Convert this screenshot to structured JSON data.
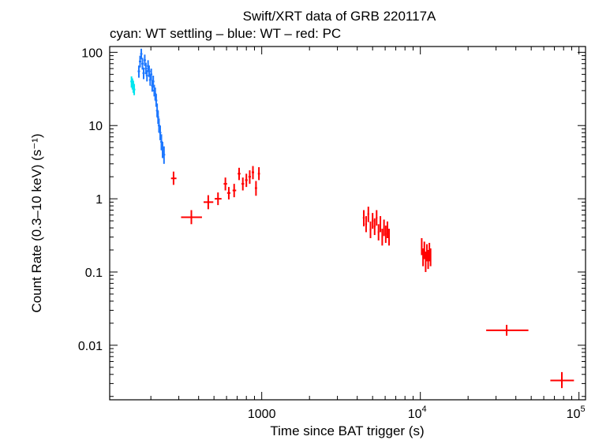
{
  "chart_data": {
    "type": "scatter",
    "title": "Swift/XRT data of GRB 220117A",
    "subtitle": "cyan: WT settling – blue: WT – red: PC",
    "xlabel": "Time since BAT trigger (s)",
    "ylabel": "Count Rate (0.3–10 keV) (s⁻¹)",
    "x_scale": "log",
    "y_scale": "log",
    "xlim": [
      110,
      110000
    ],
    "ylim": [
      0.0018,
      120
    ],
    "x_ticks": [
      {
        "value": 1000,
        "label": "1000",
        "kind": "plain"
      },
      {
        "value": 10000,
        "label": "10",
        "exp": "4",
        "kind": "power"
      },
      {
        "value": 100000,
        "label": "10",
        "exp": "5",
        "kind": "power"
      }
    ],
    "y_ticks": [
      {
        "value": 100,
        "label": "100"
      },
      {
        "value": 10,
        "label": "10"
      },
      {
        "value": 1,
        "label": "1"
      },
      {
        "value": 0.1,
        "label": "0.1"
      },
      {
        "value": 0.01,
        "label": "0.01"
      }
    ],
    "grid": false,
    "series": [
      {
        "name": "WT settling",
        "color": "#00e5ee",
        "points": [
          {
            "x": 151,
            "y": 40,
            "ylo": 33,
            "yhi": 47
          },
          {
            "x": 153,
            "y": 37,
            "ylo": 31,
            "yhi": 44
          },
          {
            "x": 155,
            "y": 34,
            "ylo": 28,
            "yhi": 41
          },
          {
            "x": 157,
            "y": 31,
            "ylo": 26,
            "yhi": 37
          }
        ]
      },
      {
        "name": "WT",
        "color": "#1e78ff",
        "points": [
          {
            "x": 168,
            "y": 55,
            "ylo": 45,
            "yhi": 66
          },
          {
            "x": 171,
            "y": 75,
            "ylo": 62,
            "yhi": 90
          },
          {
            "x": 174,
            "y": 95,
            "ylo": 80,
            "yhi": 112
          },
          {
            "x": 177,
            "y": 70,
            "ylo": 58,
            "yhi": 84
          },
          {
            "x": 180,
            "y": 52,
            "ylo": 43,
            "yhi": 62
          },
          {
            "x": 183,
            "y": 78,
            "ylo": 65,
            "yhi": 93
          },
          {
            "x": 186,
            "y": 60,
            "ylo": 50,
            "yhi": 72
          },
          {
            "x": 189,
            "y": 48,
            "ylo": 40,
            "yhi": 57
          },
          {
            "x": 192,
            "y": 65,
            "ylo": 54,
            "yhi": 78
          },
          {
            "x": 195,
            "y": 55,
            "ylo": 46,
            "yhi": 66
          },
          {
            "x": 198,
            "y": 42,
            "ylo": 35,
            "yhi": 50
          },
          {
            "x": 201,
            "y": 50,
            "ylo": 42,
            "yhi": 60
          },
          {
            "x": 204,
            "y": 35,
            "ylo": 29,
            "yhi": 42
          },
          {
            "x": 207,
            "y": 40,
            "ylo": 33,
            "yhi": 48
          },
          {
            "x": 210,
            "y": 30,
            "ylo": 25,
            "yhi": 36
          },
          {
            "x": 213,
            "y": 27,
            "ylo": 22,
            "yhi": 33
          },
          {
            "x": 216,
            "y": 22,
            "ylo": 18,
            "yhi": 27
          },
          {
            "x": 219,
            "y": 16,
            "ylo": 13,
            "yhi": 20
          },
          {
            "x": 222,
            "y": 13,
            "ylo": 10.5,
            "yhi": 16
          },
          {
            "x": 225,
            "y": 10,
            "ylo": 8,
            "yhi": 12.5
          },
          {
            "x": 229,
            "y": 8,
            "ylo": 6.3,
            "yhi": 10
          },
          {
            "x": 233,
            "y": 6,
            "ylo": 4.6,
            "yhi": 7.6
          },
          {
            "x": 237,
            "y": 4.7,
            "ylo": 3.6,
            "yhi": 6
          },
          {
            "x": 242,
            "y": 4,
            "ylo": 3,
            "yhi": 5.2
          }
        ]
      },
      {
        "name": "PC",
        "color": "#ff0000",
        "points": [
          {
            "x": 278,
            "y": 1.9,
            "xlo": 268,
            "xhi": 290,
            "ylo": 1.55,
            "yhi": 2.35
          },
          {
            "x": 360,
            "y": 0.56,
            "xlo": 310,
            "xhi": 420,
            "ylo": 0.45,
            "yhi": 0.7
          },
          {
            "x": 460,
            "y": 0.9,
            "xlo": 430,
            "xhi": 495,
            "ylo": 0.72,
            "yhi": 1.12
          },
          {
            "x": 530,
            "y": 1.0,
            "xlo": 505,
            "xhi": 558,
            "ylo": 0.82,
            "yhi": 1.22
          },
          {
            "x": 590,
            "y": 1.6,
            "xlo": 575,
            "xhi": 605,
            "ylo": 1.3,
            "yhi": 1.95
          },
          {
            "x": 620,
            "y": 1.2,
            "xlo": 605,
            "xhi": 635,
            "ylo": 0.98,
            "yhi": 1.45
          },
          {
            "x": 670,
            "y": 1.3,
            "xlo": 655,
            "xhi": 690,
            "ylo": 1.05,
            "yhi": 1.6
          },
          {
            "x": 720,
            "y": 2.2,
            "xlo": 705,
            "xhi": 735,
            "ylo": 1.8,
            "yhi": 2.65
          },
          {
            "x": 760,
            "y": 1.6,
            "xlo": 745,
            "xhi": 775,
            "ylo": 1.3,
            "yhi": 1.95
          },
          {
            "x": 800,
            "y": 1.8,
            "xlo": 785,
            "xhi": 815,
            "ylo": 1.45,
            "yhi": 2.2
          },
          {
            "x": 840,
            "y": 2.0,
            "xlo": 825,
            "xhi": 855,
            "ylo": 1.6,
            "yhi": 2.45
          },
          {
            "x": 880,
            "y": 2.3,
            "xlo": 865,
            "xhi": 895,
            "ylo": 1.85,
            "yhi": 2.8
          },
          {
            "x": 920,
            "y": 1.4,
            "xlo": 905,
            "xhi": 935,
            "ylo": 1.1,
            "yhi": 1.75
          },
          {
            "x": 960,
            "y": 2.2,
            "xlo": 945,
            "xhi": 975,
            "ylo": 1.8,
            "yhi": 2.7
          },
          {
            "x": 4400,
            "y": 0.55,
            "xlo": 4340,
            "xhi": 4460,
            "ylo": 0.42,
            "yhi": 0.7
          },
          {
            "x": 4550,
            "y": 0.45,
            "xlo": 4490,
            "xhi": 4610,
            "ylo": 0.35,
            "yhi": 0.58
          },
          {
            "x": 4700,
            "y": 0.62,
            "xlo": 4640,
            "xhi": 4760,
            "ylo": 0.48,
            "yhi": 0.78
          },
          {
            "x": 4850,
            "y": 0.38,
            "xlo": 4790,
            "xhi": 4910,
            "ylo": 0.29,
            "yhi": 0.49
          },
          {
            "x": 5000,
            "y": 0.5,
            "xlo": 4940,
            "xhi": 5060,
            "ylo": 0.39,
            "yhi": 0.64
          },
          {
            "x": 5150,
            "y": 0.42,
            "xlo": 5090,
            "xhi": 5210,
            "ylo": 0.32,
            "yhi": 0.54
          },
          {
            "x": 5300,
            "y": 0.55,
            "xlo": 5240,
            "xhi": 5360,
            "ylo": 0.43,
            "yhi": 0.7
          },
          {
            "x": 5450,
            "y": 0.35,
            "xlo": 5390,
            "xhi": 5510,
            "ylo": 0.27,
            "yhi": 0.45
          },
          {
            "x": 5600,
            "y": 0.45,
            "xlo": 5540,
            "xhi": 5660,
            "ylo": 0.35,
            "yhi": 0.58
          },
          {
            "x": 5750,
            "y": 0.3,
            "xlo": 5690,
            "xhi": 5810,
            "ylo": 0.23,
            "yhi": 0.39
          },
          {
            "x": 5900,
            "y": 0.4,
            "xlo": 5840,
            "xhi": 5960,
            "ylo": 0.31,
            "yhi": 0.52
          },
          {
            "x": 6050,
            "y": 0.33,
            "xlo": 5990,
            "xhi": 6110,
            "ylo": 0.25,
            "yhi": 0.43
          },
          {
            "x": 6200,
            "y": 0.38,
            "xlo": 6140,
            "xhi": 6260,
            "ylo": 0.29,
            "yhi": 0.49
          },
          {
            "x": 6350,
            "y": 0.3,
            "xlo": 6290,
            "xhi": 6410,
            "ylo": 0.23,
            "yhi": 0.39
          },
          {
            "x": 10200,
            "y": 0.22,
            "xlo": 10100,
            "xhi": 10300,
            "ylo": 0.17,
            "yhi": 0.29
          },
          {
            "x": 10400,
            "y": 0.16,
            "xlo": 10300,
            "xhi": 10500,
            "ylo": 0.12,
            "yhi": 0.21
          },
          {
            "x": 10600,
            "y": 0.2,
            "xlo": 10500,
            "xhi": 10700,
            "ylo": 0.15,
            "yhi": 0.26
          },
          {
            "x": 10800,
            "y": 0.14,
            "xlo": 10700,
            "xhi": 10900,
            "ylo": 0.1,
            "yhi": 0.19
          },
          {
            "x": 11000,
            "y": 0.18,
            "xlo": 10900,
            "xhi": 11100,
            "ylo": 0.14,
            "yhi": 0.24
          },
          {
            "x": 11200,
            "y": 0.15,
            "xlo": 11100,
            "xhi": 11300,
            "ylo": 0.11,
            "yhi": 0.2
          },
          {
            "x": 11400,
            "y": 0.19,
            "xlo": 11300,
            "xhi": 11500,
            "ylo": 0.14,
            "yhi": 0.25
          },
          {
            "x": 11600,
            "y": 0.16,
            "xlo": 11500,
            "xhi": 11700,
            "ylo": 0.12,
            "yhi": 0.21
          },
          {
            "x": 35000,
            "y": 0.016,
            "xlo": 26000,
            "xhi": 48000,
            "ylo": 0.0135,
            "yhi": 0.019
          },
          {
            "x": 78000,
            "y": 0.0033,
            "xlo": 66000,
            "xhi": 93000,
            "ylo": 0.0026,
            "yhi": 0.0043
          }
        ]
      }
    ]
  }
}
